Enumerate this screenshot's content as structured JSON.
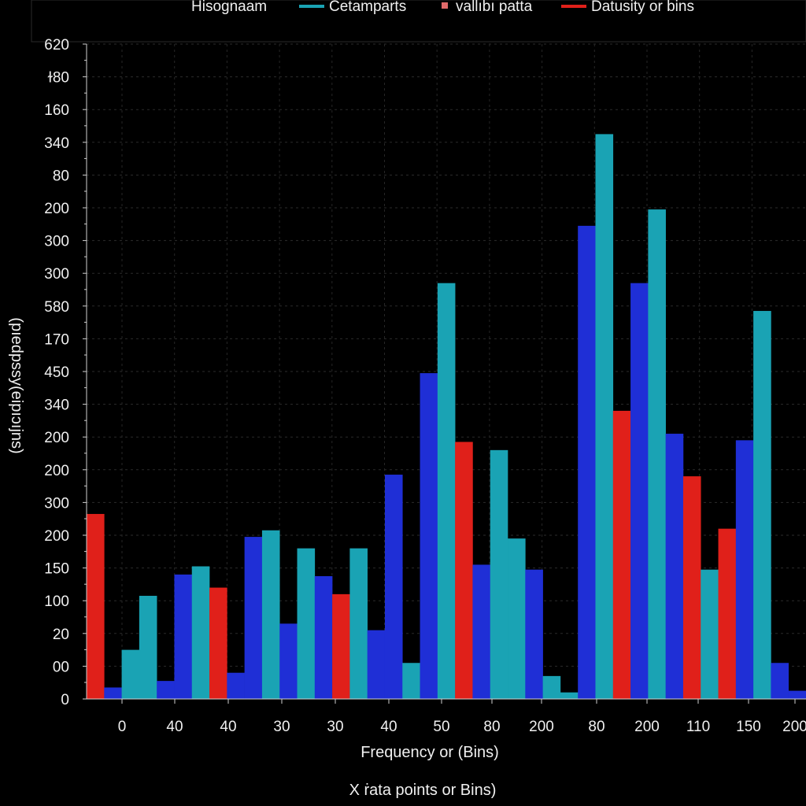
{
  "chart_data": {
    "type": "bar",
    "title": "Hisognaam",
    "xlabel": "Frequency or (Bins)",
    "xlabel_secondary": "X ṙata points or Bins)",
    "ylabel": "(pıedpssy(eipıɔıjns)",
    "y_tick_labels": [
      "0",
      "00",
      "20",
      "100",
      "150",
      "200",
      "300",
      "200",
      "200",
      "340",
      "450",
      "170",
      "580",
      "300",
      "300",
      "200",
      "80",
      "340",
      "160",
      "ɫ80",
      "620"
    ],
    "x_tick_labels": [
      "0",
      "40",
      "40",
      "30",
      "30",
      "40",
      "50",
      "80",
      "200",
      "80",
      "200",
      "110",
      "150",
      "200"
    ],
    "ylim": [
      0,
      20
    ],
    "legend": {
      "placement": "top",
      "entries": [
        {
          "name": "Cetamparts",
          "color": "#1aa3b4",
          "marker": "line"
        },
        {
          "name": "vallıbı patta",
          "color": "#e06a6a",
          "marker": "square"
        },
        {
          "name": "Datusity or bins",
          "color": "#e0201a",
          "marker": "line"
        }
      ]
    },
    "colors": {
      "blue": "#1f2fd6",
      "teal": "#1aa3b4",
      "red": "#e0201a"
    },
    "bars": [
      {
        "color": "red",
        "value": 5.65
      },
      {
        "color": "blue",
        "value": 0.35
      },
      {
        "color": "teal",
        "value": 1.5
      },
      {
        "color": "teal",
        "value": 3.15
      },
      {
        "color": "blue",
        "value": 0.55
      },
      {
        "color": "blue",
        "value": 3.8
      },
      {
        "color": "teal",
        "value": 4.05
      },
      {
        "color": "red",
        "value": 3.4
      },
      {
        "color": "blue",
        "value": 0.8
      },
      {
        "color": "blue",
        "value": 4.95
      },
      {
        "color": "teal",
        "value": 5.15
      },
      {
        "color": "blue",
        "value": 2.3
      },
      {
        "color": "teal",
        "value": 4.6
      },
      {
        "color": "blue",
        "value": 3.75
      },
      {
        "color": "red",
        "value": 3.2
      },
      {
        "color": "teal",
        "value": 4.6
      },
      {
        "color": "blue",
        "value": 2.1
      },
      {
        "color": "blue",
        "value": 6.85
      },
      {
        "color": "teal",
        "value": 1.1
      },
      {
        "color": "blue",
        "value": 9.95
      },
      {
        "color": "teal",
        "value": 12.7
      },
      {
        "color": "red",
        "value": 7.85
      },
      {
        "color": "blue",
        "value": 4.1
      },
      {
        "color": "teal",
        "value": 7.6
      },
      {
        "color": "teal",
        "value": 4.9
      },
      {
        "color": "blue",
        "value": 3.95
      },
      {
        "color": "teal",
        "value": 0.7
      },
      {
        "color": "teal",
        "value": 0.2
      },
      {
        "color": "blue",
        "value": 14.45
      },
      {
        "color": "teal",
        "value": 17.25
      },
      {
        "color": "red",
        "value": 8.8
      },
      {
        "color": "blue",
        "value": 12.7
      },
      {
        "color": "teal",
        "value": 14.95
      },
      {
        "color": "blue",
        "value": 8.1
      },
      {
        "color": "red",
        "value": 6.8
      },
      {
        "color": "teal",
        "value": 3.95
      },
      {
        "color": "red",
        "value": 5.2
      },
      {
        "color": "blue",
        "value": 7.9
      },
      {
        "color": "teal",
        "value": 11.85
      },
      {
        "color": "blue",
        "value": 1.1
      },
      {
        "color": "blue",
        "value": 0.25
      }
    ]
  }
}
